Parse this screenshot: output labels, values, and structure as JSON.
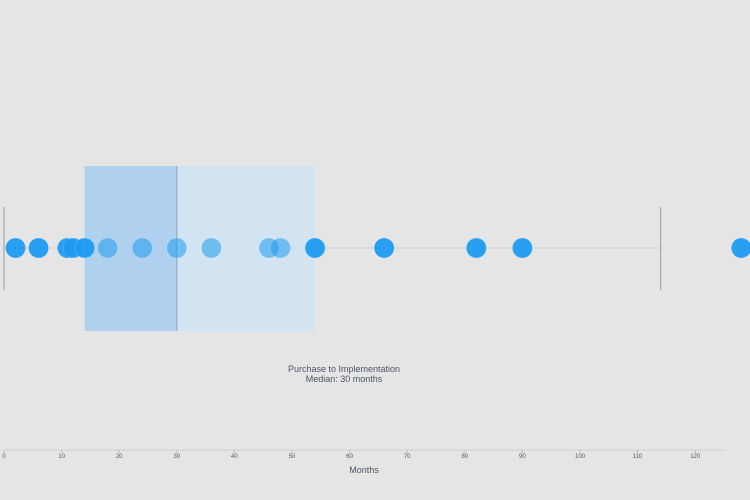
{
  "chart_data": {
    "type": "scatter",
    "subtype": "box-plot-with-points",
    "orientation": "horizontal",
    "xlabel": "Months",
    "xlim": [
      0,
      125
    ],
    "xticks": [
      0,
      10,
      20,
      30,
      40,
      50,
      60,
      70,
      80,
      90,
      100,
      110,
      120
    ],
    "grid": false,
    "legend": "none",
    "box": {
      "q1": 14,
      "median": 30,
      "q3": 54,
      "whisker_low": 0,
      "whisker_high": 114
    },
    "annotation": {
      "line1": "Purchase to Implementation",
      "line2": "Median: 30 months"
    },
    "points": [
      2,
      6,
      11,
      12,
      14,
      18,
      24,
      30,
      36,
      46,
      48,
      54,
      66,
      82,
      90,
      128
    ],
    "point_color": "#1e9bf0",
    "box_lower_color": "#a8cdee",
    "box_upper_color": "#cfe3f3"
  }
}
